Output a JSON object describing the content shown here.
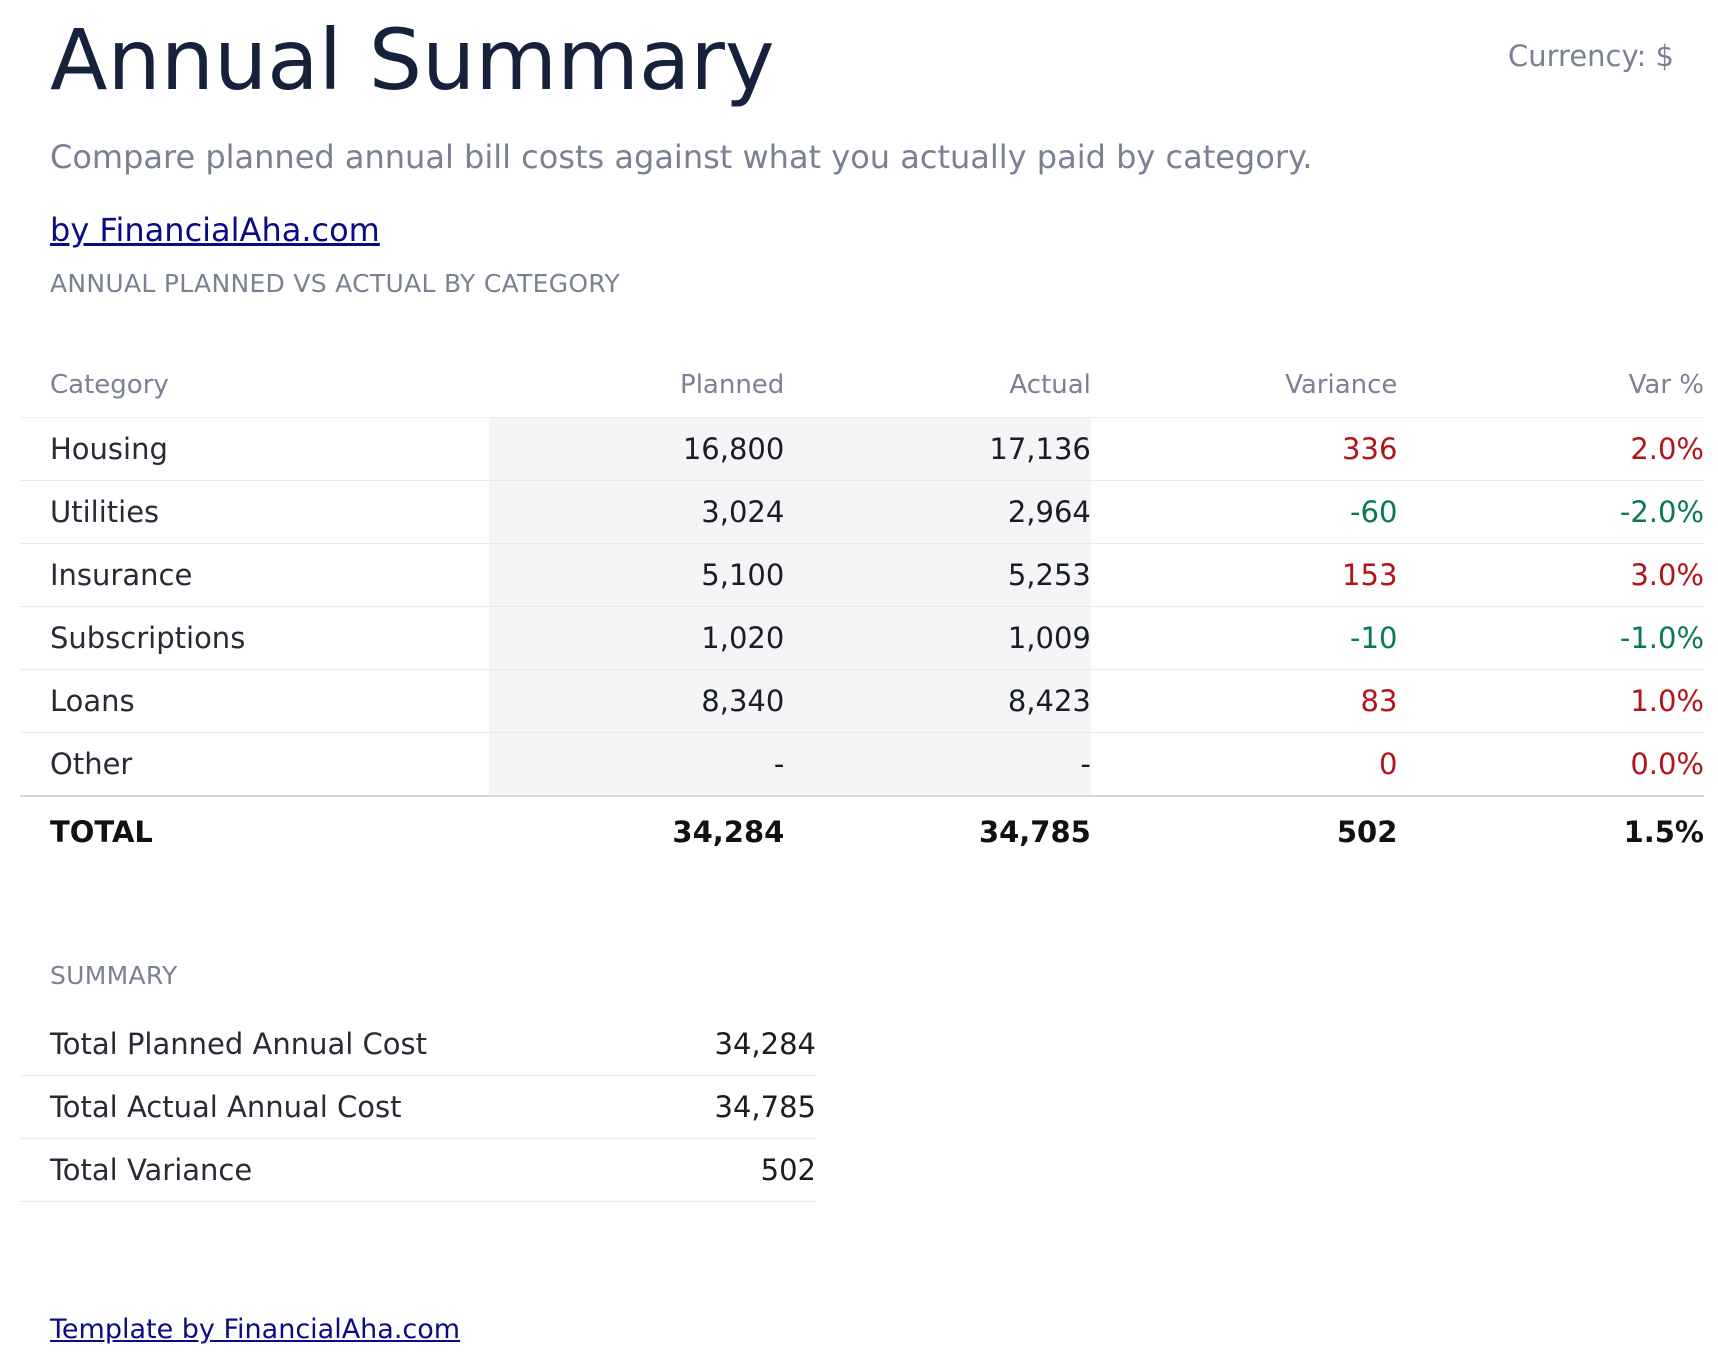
{
  "header": {
    "title": "Annual Summary",
    "currency": "Currency: $",
    "subtitle": "Compare planned annual bill costs against what you actually paid by category.",
    "brand_link": "by FinancialAha.com"
  },
  "category_table": {
    "section_title": "ANNUAL PLANNED VS ACTUAL BY CATEGORY",
    "columns": {
      "category": "Category",
      "planned": "Planned",
      "actual": "Actual",
      "variance": "Variance",
      "var_pct": "Var %"
    },
    "rows": [
      {
        "category": "Housing",
        "planned": "16,800",
        "actual": "17,136",
        "variance": "336",
        "var_pct": "2.0%"
      },
      {
        "category": "Utilities",
        "planned": "3,024",
        "actual": "2,964",
        "variance": "-60",
        "var_pct": "-2.0%"
      },
      {
        "category": "Insurance",
        "planned": "5,100",
        "actual": "5,253",
        "variance": "153",
        "var_pct": "3.0%"
      },
      {
        "category": "Subscriptions",
        "planned": "1,020",
        "actual": "1,009",
        "variance": "-10",
        "var_pct": "-1.0%"
      },
      {
        "category": "Loans",
        "planned": "8,340",
        "actual": "8,423",
        "variance": "83",
        "var_pct": "1.0%"
      },
      {
        "category": "Other",
        "planned": "-",
        "actual": "-",
        "variance": "0",
        "var_pct": "0.0%"
      }
    ],
    "total": {
      "category": "TOTAL",
      "planned": "34,284",
      "actual": "34,785",
      "variance": "502",
      "var_pct": "1.5%"
    }
  },
  "summary": {
    "section_title": "SUMMARY",
    "rows": [
      {
        "label": "Total Planned Annual Cost",
        "value": "34,284"
      },
      {
        "label": "Total Actual Annual Cost",
        "value": "34,785"
      },
      {
        "label": "Total Variance",
        "value": "502"
      }
    ]
  },
  "footer": {
    "link": "Template by FinancialAha.com"
  },
  "colors": {
    "over_budget": "#b3131b",
    "under_budget": "#0a7a4e",
    "link": "#0b0b86"
  }
}
